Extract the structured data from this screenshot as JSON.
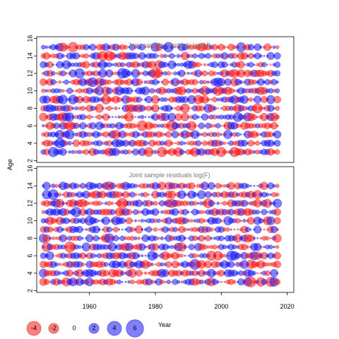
{
  "chart_data": {
    "type": "scatter",
    "subtype": "bubble",
    "xlabel": "Year",
    "ylabel": "Age",
    "xlim": [
      1944,
      2022
    ],
    "ylim": [
      1.8,
      16.2
    ],
    "x_ticks": [
      1960,
      1980,
      2000,
      2020
    ],
    "y_ticks": [
      2,
      4,
      6,
      8,
      10,
      12,
      14,
      16
    ],
    "colors": {
      "positive": "#0000ff",
      "negative": "#ff0000"
    },
    "bubble_alpha": 0.5,
    "year_range": [
      1946,
      2017
    ],
    "panels": [
      {
        "title": "Joint sample residuals log(M)",
        "ages": [
          3,
          15
        ],
        "seed": 17
      },
      {
        "title": "Joint sample residuals log(F)",
        "ages": [
          3,
          14
        ],
        "seed": 91
      }
    ],
    "legend": {
      "placement": "bottom-left",
      "items": [
        {
          "label": "-4",
          "value": -4
        },
        {
          "label": "-2",
          "value": -2
        },
        {
          "label": "0",
          "value": 0
        },
        {
          "label": "2",
          "value": 2
        },
        {
          "label": "4",
          "value": 4
        },
        {
          "label": "6",
          "value": 6
        }
      ]
    }
  }
}
